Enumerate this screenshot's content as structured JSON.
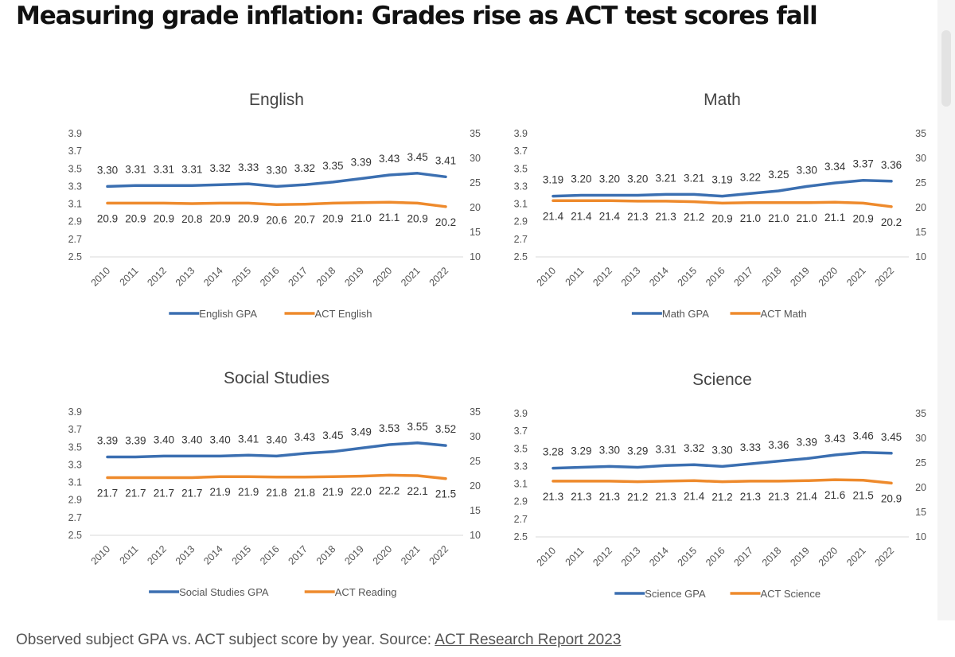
{
  "headline": "Measuring grade inflation: Grades rise as ACT test scores fall",
  "caption": {
    "text": "Observed subject GPA vs. ACT subject score by year. Source: ",
    "link": "ACT Research Report 2023"
  },
  "colors": {
    "gpa": "#3b6fb1",
    "act": "#ee8a2c"
  },
  "chart_data": [
    {
      "type": "line",
      "title": "English",
      "x": [
        "2010",
        "2011",
        "2012",
        "2013",
        "2014",
        "2015",
        "2016",
        "2017",
        "2018",
        "2019",
        "2020",
        "2021",
        "2022"
      ],
      "y_left": {
        "ticks": [
          "3.9",
          "3.7",
          "3.5",
          "3.3",
          "3.1",
          "2.9",
          "2.7",
          "2.5"
        ],
        "ylim": [
          2.5,
          3.9
        ]
      },
      "y_right": {
        "ticks": [
          "35",
          "30",
          "25",
          "20",
          "15",
          "10"
        ],
        "ylim": [
          10,
          35
        ]
      },
      "series": [
        {
          "name": "English GPA",
          "axis": "left",
          "values": [
            3.3,
            3.31,
            3.31,
            3.31,
            3.32,
            3.33,
            3.3,
            3.32,
            3.35,
            3.39,
            3.43,
            3.45,
            3.41
          ],
          "labels": [
            "3.30",
            "3.31",
            "3.31",
            "3.31",
            "3.32",
            "3.33",
            "3.30",
            "3.32",
            "3.35",
            "3.39",
            "3.43",
            "3.45",
            "3.41"
          ]
        },
        {
          "name": "ACT English",
          "axis": "right",
          "values": [
            20.9,
            20.9,
            20.9,
            20.8,
            20.9,
            20.9,
            20.6,
            20.7,
            20.9,
            21.0,
            21.1,
            20.9,
            20.2
          ],
          "labels": [
            "20.9",
            "20.9",
            "20.9",
            "20.8",
            "20.9",
            "20.9",
            "20.6",
            "20.7",
            "20.9",
            "21.0",
            "21.1",
            "20.9",
            "20.2"
          ]
        }
      ],
      "legend": "bottom"
    },
    {
      "type": "line",
      "title": "Math",
      "x": [
        "2010",
        "2011",
        "2012",
        "2013",
        "2014",
        "2015",
        "2016",
        "2017",
        "2018",
        "2019",
        "2020",
        "2021",
        "2022"
      ],
      "y_left": {
        "ticks": [
          "3.9",
          "3.7",
          "3.5",
          "3.3",
          "3.1",
          "2.9",
          "2.7",
          "2.5"
        ],
        "ylim": [
          2.5,
          3.9
        ]
      },
      "y_right": {
        "ticks": [
          "35",
          "30",
          "25",
          "20",
          "15",
          "10"
        ],
        "ylim": [
          10,
          35
        ]
      },
      "series": [
        {
          "name": "Math GPA",
          "axis": "left",
          "values": [
            3.19,
            3.2,
            3.2,
            3.2,
            3.21,
            3.21,
            3.19,
            3.22,
            3.25,
            3.3,
            3.34,
            3.37,
            3.36
          ],
          "labels": [
            "3.19",
            "3.20",
            "3.20",
            "3.20",
            "3.21",
            "3.21",
            "3.19",
            "3.22",
            "3.25",
            "3.30",
            "3.34",
            "3.37",
            "3.36"
          ]
        },
        {
          "name": "ACT Math",
          "axis": "right",
          "values": [
            21.4,
            21.4,
            21.4,
            21.3,
            21.3,
            21.2,
            20.9,
            21.0,
            21.0,
            21.0,
            21.1,
            20.9,
            20.2
          ],
          "labels": [
            "21.4",
            "21.4",
            "21.4",
            "21.3",
            "21.3",
            "21.2",
            "20.9",
            "21.0",
            "21.0",
            "21.0",
            "21.1",
            "20.9",
            "20.2"
          ]
        }
      ],
      "legend": "bottom"
    },
    {
      "type": "line",
      "title": "Social Studies",
      "x": [
        "2010",
        "2011",
        "2012",
        "2013",
        "2014",
        "2015",
        "2016",
        "2017",
        "2018",
        "2019",
        "2020",
        "2021",
        "2022"
      ],
      "y_left": {
        "ticks": [
          "3.9",
          "3.7",
          "3.5",
          "3.3",
          "3.1",
          "2.9",
          "2.7",
          "2.5"
        ],
        "ylim": [
          2.5,
          3.9
        ]
      },
      "y_right": {
        "ticks": [
          "35",
          "30",
          "25",
          "20",
          "15",
          "10"
        ],
        "ylim": [
          10,
          35
        ]
      },
      "series": [
        {
          "name": "Social Studies GPA",
          "axis": "left",
          "values": [
            3.39,
            3.39,
            3.4,
            3.4,
            3.4,
            3.41,
            3.4,
            3.43,
            3.45,
            3.49,
            3.53,
            3.55,
            3.52
          ],
          "labels": [
            "3.39",
            "3.39",
            "3.40",
            "3.40",
            "3.40",
            "3.41",
            "3.40",
            "3.43",
            "3.45",
            "3.49",
            "3.53",
            "3.55",
            "3.52"
          ]
        },
        {
          "name": "ACT Reading",
          "axis": "right",
          "values": [
            21.7,
            21.7,
            21.7,
            21.7,
            21.9,
            21.9,
            21.8,
            21.8,
            21.9,
            22.0,
            22.2,
            22.1,
            21.5
          ],
          "labels": [
            "21.7",
            "21.7",
            "21.7",
            "21.7",
            "21.9",
            "21.9",
            "21.8",
            "21.8",
            "21.9",
            "22.0",
            "22.2",
            "22.1",
            "21.5"
          ]
        }
      ],
      "legend": "bottom"
    },
    {
      "type": "line",
      "title": "Science",
      "x": [
        "2010",
        "2011",
        "2012",
        "2013",
        "2014",
        "2015",
        "2016",
        "2017",
        "2018",
        "2019",
        "2020",
        "2021",
        "2022"
      ],
      "y_left": {
        "ticks": [
          "3.9",
          "3.7",
          "3.5",
          "3.3",
          "3.1",
          "2.9",
          "2.7",
          "2.5"
        ],
        "ylim": [
          2.5,
          3.9
        ]
      },
      "y_right": {
        "ticks": [
          "35",
          "30",
          "25",
          "20",
          "15",
          "10"
        ],
        "ylim": [
          10,
          35
        ]
      },
      "series": [
        {
          "name": "Science GPA",
          "axis": "left",
          "values": [
            3.28,
            3.29,
            3.3,
            3.29,
            3.31,
            3.32,
            3.3,
            3.33,
            3.36,
            3.39,
            3.43,
            3.46,
            3.45
          ],
          "labels": [
            "3.28",
            "3.29",
            "3.30",
            "3.29",
            "3.31",
            "3.32",
            "3.30",
            "3.33",
            "3.36",
            "3.39",
            "3.43",
            "3.46",
            "3.45"
          ]
        },
        {
          "name": "ACT Science",
          "axis": "right",
          "values": [
            21.3,
            21.3,
            21.3,
            21.2,
            21.3,
            21.4,
            21.2,
            21.3,
            21.3,
            21.4,
            21.6,
            21.5,
            20.9
          ],
          "labels": [
            "21.3",
            "21.3",
            "21.3",
            "21.2",
            "21.3",
            "21.4",
            "21.2",
            "21.3",
            "21.3",
            "21.4",
            "21.6",
            "21.5",
            "20.9"
          ]
        }
      ],
      "legend": "bottom"
    }
  ]
}
